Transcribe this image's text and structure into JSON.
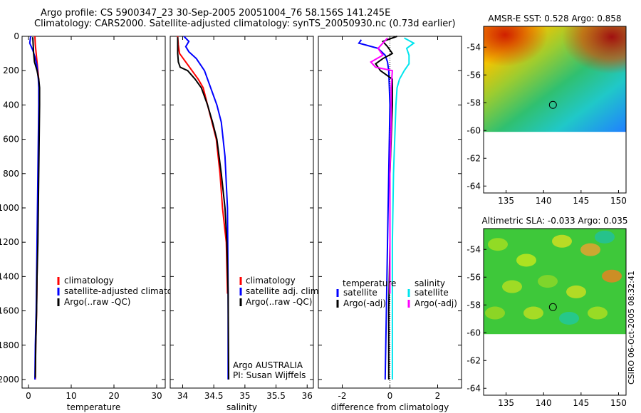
{
  "header": {
    "line1": "Argo profile: CS 5900347_23 30-Sep-2005 20051004_76 58.156S 141.245E",
    "line2": "Climatology: CARS2000. Satellite-adjusted climatology: synTS_20050930.nc (0.73d earlier)"
  },
  "footer": {
    "credit": "CSIRO 06-Oct-2005 08:32:41"
  },
  "colors": {
    "climatology": "#ff0000",
    "satellite": "#0000ff",
    "argo": "#000000",
    "temp_satellite": "#0000ff",
    "sal_satellite": "#00e5ee",
    "sal_argo": "#ff00ff"
  },
  "chart_data": [
    {
      "type": "line",
      "id": "temperature",
      "xlabel": "temperature",
      "xlim": [
        -1.5,
        32
      ],
      "ylim": [
        2050,
        0
      ],
      "xticks": [
        0,
        10,
        20,
        30
      ],
      "yticks": [
        0,
        200,
        400,
        600,
        800,
        1000,
        1200,
        1400,
        1600,
        1800,
        2000
      ],
      "legend": [
        "climatology",
        "satellite-adjusted climatology",
        "Argo(..raw -QC)"
      ],
      "series": [
        {
          "name": "climatology",
          "color": "#ff0000",
          "points": [
            [
              1.5,
              0
            ],
            [
              1.6,
              50
            ],
            [
              1.8,
              100
            ],
            [
              2.0,
              150
            ],
            [
              2.2,
              200
            ],
            [
              2.4,
              250
            ],
            [
              2.5,
              300
            ],
            [
              2.5,
              400
            ],
            [
              2.4,
              600
            ],
            [
              2.3,
              800
            ],
            [
              2.2,
              1000
            ],
            [
              2.1,
              1200
            ],
            [
              2.0,
              1400
            ],
            [
              1.9,
              1600
            ],
            [
              1.7,
              1800
            ],
            [
              1.6,
              2000
            ]
          ]
        },
        {
          "name": "satellite-adjusted climatology",
          "color": "#0000ff",
          "points": [
            [
              0.5,
              0
            ],
            [
              0.3,
              40
            ],
            [
              1.0,
              80
            ],
            [
              1.5,
              120
            ],
            [
              1.9,
              160
            ],
            [
              2.1,
              200
            ],
            [
              2.3,
              250
            ],
            [
              2.4,
              300
            ],
            [
              2.4,
              400
            ],
            [
              2.3,
              600
            ],
            [
              2.2,
              800
            ],
            [
              2.1,
              1000
            ],
            [
              2.0,
              1200
            ],
            [
              1.9,
              1400
            ],
            [
              1.8,
              1600
            ],
            [
              1.6,
              1800
            ],
            [
              1.5,
              2000
            ]
          ]
        },
        {
          "name": "Argo(..raw -QC)",
          "color": "#000000",
          "points": [
            [
              1.0,
              5
            ],
            [
              1.1,
              50
            ],
            [
              1.2,
              100
            ],
            [
              1.4,
              150
            ],
            [
              2.0,
              200
            ],
            [
              2.4,
              250
            ],
            [
              2.6,
              300
            ],
            [
              2.6,
              400
            ],
            [
              2.5,
              600
            ],
            [
              2.4,
              800
            ],
            [
              2.3,
              1000
            ],
            [
              2.2,
              1200
            ],
            [
              2.0,
              1400
            ],
            [
              1.9,
              1600
            ],
            [
              1.7,
              1800
            ],
            [
              1.6,
              1990
            ]
          ]
        }
      ]
    },
    {
      "type": "line",
      "id": "salinity",
      "xlabel": "salinity",
      "xlim": [
        33.8,
        36.1
      ],
      "ylim": [
        2050,
        0
      ],
      "xticks": [
        34,
        34.5,
        35,
        35.5,
        36
      ],
      "xticklabels": [
        "34",
        "34.5",
        "35",
        "35.5",
        "36"
      ],
      "legend": [
        "climatology",
        "satellite adj. clim.",
        "Argo(..raw -QC)"
      ],
      "annotation": [
        "Argo AUSTRALIA",
        "PI: Susan Wijffels"
      ],
      "series": [
        {
          "name": "climatology",
          "color": "#ff0000",
          "points": [
            [
              33.92,
              0
            ],
            [
              33.93,
              50
            ],
            [
              33.95,
              100
            ],
            [
              34.05,
              150
            ],
            [
              34.15,
              200
            ],
            [
              34.25,
              250
            ],
            [
              34.33,
              300
            ],
            [
              34.4,
              400
            ],
            [
              34.47,
              500
            ],
            [
              34.54,
              600
            ],
            [
              34.6,
              800
            ],
            [
              34.64,
              1000
            ],
            [
              34.7,
              1200
            ],
            [
              34.72,
              1500
            ]
          ]
        },
        {
          "name": "satellite adj. clim.",
          "color": "#0000ff",
          "points": [
            [
              34.02,
              0
            ],
            [
              34.1,
              30
            ],
            [
              34.05,
              60
            ],
            [
              34.1,
              90
            ],
            [
              34.22,
              130
            ],
            [
              34.35,
              200
            ],
            [
              34.45,
              300
            ],
            [
              34.55,
              400
            ],
            [
              34.62,
              500
            ],
            [
              34.68,
              700
            ],
            [
              34.72,
              1000
            ],
            [
              34.73,
              1500
            ],
            [
              34.73,
              2000
            ]
          ]
        },
        {
          "name": "Argo(..raw -QC)",
          "color": "#000000",
          "points": [
            [
              33.92,
              5
            ],
            [
              33.92,
              50
            ],
            [
              33.92,
              100
            ],
            [
              33.93,
              150
            ],
            [
              33.96,
              180
            ],
            [
              34.08,
              200
            ],
            [
              34.2,
              250
            ],
            [
              34.3,
              300
            ],
            [
              34.4,
              400
            ],
            [
              34.48,
              500
            ],
            [
              34.55,
              600
            ],
            [
              34.62,
              800
            ],
            [
              34.68,
              1000
            ],
            [
              34.71,
              1200
            ],
            [
              34.73,
              1500
            ],
            [
              34.74,
              2000
            ]
          ]
        }
      ]
    },
    {
      "type": "line",
      "id": "difference",
      "xlabel": "difference from climatology",
      "xlim": [
        -3,
        3
      ],
      "ylim": [
        2050,
        0
      ],
      "xticks": [
        -2,
        0,
        2
      ],
      "legend_headers": [
        "temperature",
        "salinity"
      ],
      "legend": [
        "satellite",
        "Argo(-adj)",
        "satellite",
        "Argo(-adj)"
      ],
      "series": [
        {
          "name": "temperature satellite",
          "color": "#0000ff",
          "points": [
            [
              -1.2,
              20
            ],
            [
              -1.3,
              40
            ],
            [
              -0.5,
              70
            ],
            [
              -0.2,
              110
            ],
            [
              -0.1,
              150
            ],
            [
              -0.05,
              200
            ],
            [
              0.0,
              400
            ],
            [
              -0.05,
              800
            ],
            [
              -0.1,
              1200
            ],
            [
              -0.15,
              1600
            ],
            [
              -0.2,
              2000
            ]
          ]
        },
        {
          "name": "temperature Argo(-adj)",
          "color": "#000000",
          "points": [
            [
              0.3,
              0
            ],
            [
              -0.3,
              30
            ],
            [
              -0.1,
              60
            ],
            [
              0.1,
              100
            ],
            [
              -0.3,
              130
            ],
            [
              -0.6,
              160
            ],
            [
              -0.4,
              200
            ],
            [
              0.1,
              250
            ],
            [
              0.1,
              400
            ],
            [
              0.0,
              800
            ],
            [
              0.0,
              1200
            ],
            [
              -0.05,
              1600
            ],
            [
              -0.05,
              2000
            ]
          ]
        },
        {
          "name": "salinity satellite",
          "color": "#00e5ee",
          "points": [
            [
              0.6,
              10
            ],
            [
              1.0,
              40
            ],
            [
              0.7,
              70
            ],
            [
              0.8,
              110
            ],
            [
              0.8,
              160
            ],
            [
              0.6,
              200
            ],
            [
              0.4,
              250
            ],
            [
              0.3,
              300
            ],
            [
              0.25,
              400
            ],
            [
              0.2,
              600
            ],
            [
              0.15,
              800
            ],
            [
              0.1,
              1200
            ],
            [
              0.1,
              1600
            ],
            [
              0.1,
              2000
            ]
          ]
        },
        {
          "name": "salinity Argo(-adj)",
          "color": "#ff00ff",
          "points": [
            [
              -0.1,
              10
            ],
            [
              -0.3,
              40
            ],
            [
              -0.5,
              70
            ],
            [
              -0.3,
              110
            ],
            [
              -0.8,
              150
            ],
            [
              -0.6,
              180
            ],
            [
              0.1,
              200
            ],
            [
              0.05,
              300
            ],
            [
              0.05,
              500
            ],
            [
              0.0,
              800
            ],
            [
              0.0,
              1200
            ],
            [
              0.0,
              1500
            ]
          ]
        }
      ]
    },
    {
      "type": "heatmap",
      "id": "sst-map",
      "title": "AMSR-E SST: 0.528 Argo: 0.858",
      "xlim": [
        132,
        151
      ],
      "ylim": [
        -64.5,
        -52.5
      ],
      "xticks": [
        135,
        140,
        145,
        150
      ],
      "yticks": [
        -54,
        -56,
        -58,
        -60,
        -62,
        -64
      ],
      "marker": {
        "lon": 141.245,
        "lat": -58.156
      },
      "colormap_note": "warm top-left, cool bottom-right",
      "data_lat_min": -60.1
    },
    {
      "type": "heatmap",
      "id": "sla-map",
      "title": "Altimetric SLA: -0.033 Argo: 0.035",
      "xlim": [
        132,
        151
      ],
      "ylim": [
        -64.5,
        -52.5
      ],
      "xticks": [
        135,
        140,
        145,
        150
      ],
      "yticks": [
        -54,
        -56,
        -58,
        -60,
        -62,
        -64
      ],
      "marker": {
        "lon": 141.245,
        "lat": -58.156
      },
      "data_lat_min": -60.1
    }
  ]
}
